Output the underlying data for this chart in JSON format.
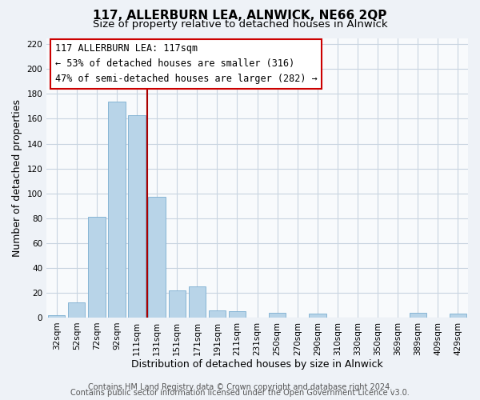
{
  "title": "117, ALLERBURN LEA, ALNWICK, NE66 2QP",
  "subtitle": "Size of property relative to detached houses in Alnwick",
  "xlabel": "Distribution of detached houses by size in Alnwick",
  "ylabel": "Number of detached properties",
  "bar_labels": [
    "32sqm",
    "52sqm",
    "72sqm",
    "92sqm",
    "111sqm",
    "131sqm",
    "151sqm",
    "171sqm",
    "191sqm",
    "211sqm",
    "231sqm",
    "250sqm",
    "270sqm",
    "290sqm",
    "310sqm",
    "330sqm",
    "350sqm",
    "369sqm",
    "389sqm",
    "409sqm",
    "429sqm"
  ],
  "bar_values": [
    2,
    12,
    81,
    174,
    163,
    97,
    22,
    25,
    6,
    5,
    0,
    4,
    0,
    3,
    0,
    0,
    0,
    0,
    4,
    0,
    3
  ],
  "bar_color": "#b8d4e8",
  "bar_edge_color": "#7aadd0",
  "highlight_line_color": "#aa0000",
  "highlight_line_index": 5,
  "annotation_title": "117 ALLERBURN LEA: 117sqm",
  "annotation_line1": "← 53% of detached houses are smaller (316)",
  "annotation_line2": "47% of semi-detached houses are larger (282) →",
  "annotation_box_facecolor": "#ffffff",
  "annotation_box_edgecolor": "#cc0000",
  "ylim": [
    0,
    225
  ],
  "yticks": [
    0,
    20,
    40,
    60,
    80,
    100,
    120,
    140,
    160,
    180,
    200,
    220
  ],
  "footer1": "Contains HM Land Registry data © Crown copyright and database right 2024.",
  "footer2": "Contains public sector information licensed under the Open Government Licence v3.0.",
  "background_color": "#eef2f7",
  "plot_bg_color": "#f8fafc",
  "grid_color": "#c8d4e0",
  "title_fontsize": 11,
  "subtitle_fontsize": 9.5,
  "axis_label_fontsize": 9,
  "tick_fontsize": 7.5,
  "footer_fontsize": 7
}
